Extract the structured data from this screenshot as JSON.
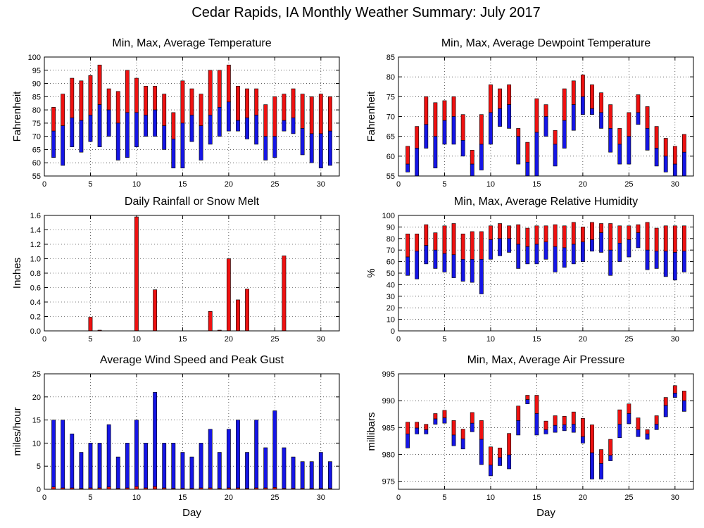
{
  "main_title": "Cedar Rapids, IA Monthly Weather Summary: July 2017",
  "colors": {
    "red": "#ee1111",
    "blue": "#1515e6"
  },
  "chart_data": [
    {
      "id": "temperature",
      "type": "bar",
      "title": "Min, Max, Average Temperature",
      "xlabel": "",
      "ylabel": "Fahrenheit",
      "xlim": [
        0,
        32
      ],
      "ylim": [
        55,
        100
      ],
      "xticks": [
        0,
        5,
        10,
        15,
        20,
        25,
        30
      ],
      "yticks": [
        55,
        60,
        65,
        70,
        75,
        80,
        85,
        90,
        95,
        100
      ],
      "grid": true,
      "days": [
        1,
        2,
        3,
        4,
        5,
        6,
        7,
        8,
        9,
        10,
        11,
        12,
        13,
        14,
        15,
        16,
        17,
        18,
        19,
        20,
        21,
        22,
        23,
        24,
        25,
        26,
        27,
        28,
        29,
        30,
        31
      ],
      "min": [
        62,
        59,
        66,
        64,
        68,
        66,
        70,
        61,
        62,
        66,
        70,
        70,
        65,
        58,
        58,
        68,
        61,
        67,
        70,
        72,
        72,
        69,
        67,
        61,
        62,
        72,
        71,
        63,
        60,
        58,
        59
      ],
      "avg": [
        72,
        74,
        77,
        76,
        78,
        82,
        80,
        75,
        79,
        79,
        78,
        80,
        74,
        69,
        75,
        78,
        74,
        78,
        81,
        83,
        76,
        77,
        78,
        70,
        70,
        76,
        77,
        73,
        71,
        71,
        72
      ],
      "max": [
        81,
        86,
        92,
        91,
        93,
        97,
        88,
        87,
        95,
        92,
        89,
        89,
        86,
        79,
        91,
        88,
        86,
        95,
        95,
        97,
        89,
        88,
        88,
        82,
        85,
        86,
        88,
        86,
        85,
        86,
        85
      ]
    },
    {
      "id": "dewpoint",
      "type": "bar",
      "title": "Min, Max, Average Dewpoint Temperature",
      "xlabel": "",
      "ylabel": "Fahrenheit",
      "xlim": [
        0,
        32
      ],
      "ylim": [
        55,
        85
      ],
      "xticks": [
        0,
        5,
        10,
        15,
        20,
        25,
        30
      ],
      "yticks": [
        55,
        60,
        65,
        70,
        75,
        80,
        85
      ],
      "grid": true,
      "days": [
        1,
        2,
        3,
        4,
        5,
        6,
        7,
        8,
        9,
        10,
        11,
        12,
        13,
        14,
        15,
        16,
        17,
        18,
        19,
        20,
        21,
        22,
        23,
        24,
        25,
        26,
        27,
        28,
        29,
        30,
        31
      ],
      "min": [
        56,
        54.5,
        62,
        57,
        63,
        63,
        60,
        55,
        56.5,
        63,
        67.5,
        67,
        58,
        54,
        54.5,
        65,
        57.5,
        62,
        66.5,
        70.5,
        70.5,
        67,
        61,
        58,
        58,
        68,
        61.5,
        57.5,
        56,
        54.5,
        54.5
      ],
      "avg": [
        58,
        62,
        68,
        65,
        69,
        70,
        64,
        58,
        63,
        71,
        72,
        73,
        65,
        58.5,
        66,
        70,
        63,
        69,
        73,
        75,
        72,
        71,
        67,
        63,
        65,
        71,
        67,
        62,
        60,
        58,
        61
      ],
      "max": [
        62.5,
        67.5,
        75,
        73.5,
        74,
        75,
        70.5,
        61.5,
        70.5,
        78,
        77,
        78,
        67,
        63.5,
        74.5,
        73,
        66.5,
        77,
        79,
        80.5,
        78,
        76,
        73,
        67,
        71,
        75.5,
        72.5,
        67.5,
        64.5,
        62.5,
        65.5
      ]
    },
    {
      "id": "rainfall",
      "type": "bar",
      "title": "Daily Rainfall or Snow Melt",
      "xlabel": "",
      "ylabel": "Inches",
      "xlim": [
        0,
        32
      ],
      "ylim": [
        0,
        1.6
      ],
      "xticks": [
        0,
        5,
        10,
        15,
        20,
        25,
        30
      ],
      "yticks": [
        0,
        0.2,
        0.4,
        0.6,
        0.8,
        1.0,
        1.2,
        1.4,
        1.6
      ],
      "ytick_labels": [
        "0.0",
        "0.2",
        "0.4",
        "0.6",
        "0.8",
        "1.0",
        "1.2",
        "1.4",
        "1.6"
      ],
      "grid": true,
      "days": [
        5,
        6,
        10,
        12,
        18,
        19,
        20,
        21,
        22,
        26
      ],
      "values": [
        0.19,
        0.01,
        1.58,
        0.57,
        0.27,
        0.01,
        1.0,
        0.43,
        0.58,
        1.04
      ]
    },
    {
      "id": "humidity",
      "type": "bar",
      "title": "Min, Max, Average Relative Humidity",
      "xlabel": "",
      "ylabel": "%",
      "xlim": [
        0,
        32
      ],
      "ylim": [
        0,
        100
      ],
      "xticks": [
        0,
        5,
        10,
        15,
        20,
        25,
        30
      ],
      "yticks": [
        0,
        10,
        20,
        30,
        40,
        50,
        60,
        70,
        80,
        90,
        100
      ],
      "grid": true,
      "days": [
        1,
        2,
        3,
        4,
        5,
        6,
        7,
        8,
        9,
        10,
        11,
        12,
        13,
        14,
        15,
        16,
        17,
        18,
        19,
        20,
        21,
        22,
        23,
        24,
        25,
        26,
        27,
        28,
        29,
        30,
        31
      ],
      "min": [
        48,
        45,
        58,
        54,
        51,
        46,
        43,
        42,
        32,
        62,
        65,
        68,
        54,
        58,
        58,
        62,
        51,
        55,
        58,
        60,
        69,
        68,
        48,
        60,
        64,
        72,
        53,
        54,
        47,
        44,
        51
      ],
      "avg": [
        64,
        69,
        74,
        70,
        67,
        66,
        62,
        62,
        62,
        79,
        80,
        80,
        75,
        73,
        75,
        77,
        73,
        72,
        75,
        77,
        79,
        85,
        70,
        76,
        79,
        85,
        70,
        69,
        69,
        68,
        69
      ],
      "max": [
        84,
        84,
        92,
        85,
        91,
        93,
        84,
        86,
        86,
        91,
        93,
        91,
        92,
        89,
        91,
        91,
        92,
        91,
        94,
        90,
        94,
        93,
        93,
        91,
        91,
        92,
        94,
        89,
        91,
        91,
        91
      ]
    },
    {
      "id": "wind",
      "type": "bar",
      "title": "Average Wind Speed and Peak Gust",
      "xlabel": "Day",
      "ylabel": "miles/hour",
      "xlim": [
        0,
        32
      ],
      "ylim": [
        0,
        25
      ],
      "xticks": [
        0,
        5,
        10,
        15,
        20,
        25,
        30
      ],
      "yticks": [
        0,
        5,
        10,
        15,
        20,
        25
      ],
      "grid": true,
      "days": [
        1,
        2,
        3,
        4,
        5,
        6,
        7,
        8,
        9,
        10,
        11,
        12,
        13,
        14,
        15,
        16,
        17,
        18,
        19,
        20,
        21,
        22,
        23,
        24,
        25,
        26,
        27,
        28,
        29,
        30,
        31
      ],
      "speed": [
        15,
        15,
        12,
        8,
        10,
        10,
        14,
        7,
        10,
        15,
        10,
        21,
        10,
        10,
        8,
        7,
        10,
        13,
        8,
        13,
        15,
        8,
        15,
        9,
        17,
        9,
        7,
        6,
        6,
        8,
        6
      ],
      "gust": [
        0.5,
        0.3,
        0.3,
        0.2,
        0.3,
        0.3,
        0.5,
        0.2,
        0.3,
        0.6,
        0.3,
        0.6,
        0.3,
        0.2,
        0.2,
        0.2,
        0.3,
        0.3,
        0.2,
        0.3,
        0.3,
        0.2,
        0.3,
        0.3,
        0.4,
        0.2,
        0.2,
        0.2,
        0.2,
        0.2,
        0.2
      ]
    },
    {
      "id": "pressure",
      "type": "bar",
      "title": "Min, Max, Average Air Pressure",
      "xlabel": "Day",
      "ylabel": "millibars",
      "xlim": [
        0,
        32
      ],
      "ylim": [
        973.5,
        995
      ],
      "xticks": [
        0,
        5,
        10,
        15,
        20,
        25,
        30
      ],
      "yticks": [
        975,
        980,
        985,
        990,
        995
      ],
      "grid": true,
      "days": [
        1,
        2,
        3,
        4,
        5,
        6,
        7,
        8,
        9,
        10,
        11,
        12,
        13,
        14,
        15,
        16,
        17,
        18,
        19,
        20,
        21,
        22,
        23,
        24,
        25,
        26,
        27,
        28,
        29,
        30,
        31
      ],
      "min": [
        981.2,
        983.8,
        983.8,
        985.6,
        985.8,
        981.6,
        981.0,
        984.2,
        978.1,
        976.0,
        977.9,
        977.3,
        983.6,
        989.4,
        983.6,
        983.8,
        984.1,
        984.4,
        984.1,
        982.1,
        975.4,
        975.4,
        978.8,
        983.1,
        985.7,
        983.3,
        982.8,
        984.6,
        987.0,
        990.6,
        988.0
      ],
      "avg": [
        983.8,
        984.9,
        984.6,
        986.6,
        986.8,
        983.6,
        982.9,
        985.8,
        982.8,
        978.0,
        979.4,
        979.9,
        986.3,
        990.2,
        987.6,
        984.6,
        985.4,
        985.5,
        985.6,
        983.3,
        980.3,
        978.3,
        979.8,
        985.6,
        987.6,
        984.6,
        983.8,
        985.6,
        989.1,
        991.4,
        990.0
      ],
      "max": [
        986.0,
        986.0,
        985.6,
        987.6,
        988.2,
        986.3,
        984.7,
        987.8,
        986.3,
        981.4,
        981.2,
        983.9,
        989.0,
        991.0,
        991.0,
        986.2,
        987.2,
        987.1,
        987.9,
        986.7,
        985.5,
        980.9,
        982.8,
        988.3,
        989.4,
        986.8,
        984.6,
        987.2,
        990.6,
        992.8,
        991.8
      ]
    }
  ]
}
